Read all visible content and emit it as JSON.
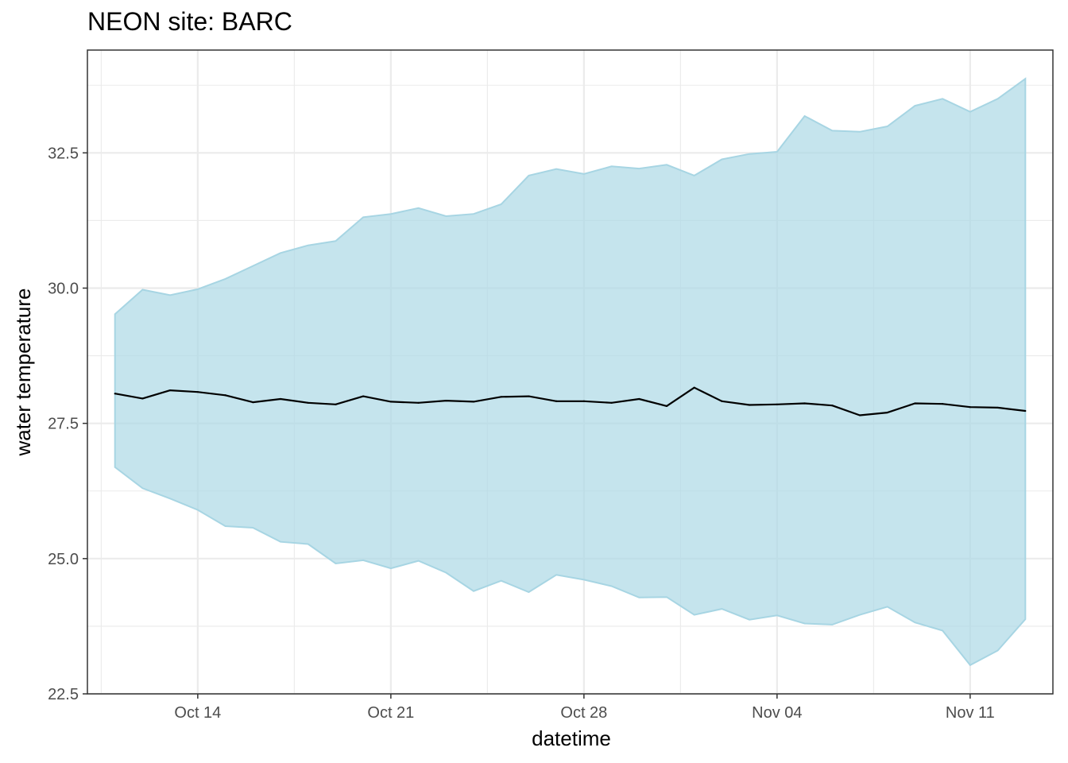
{
  "chart_data": {
    "type": "area",
    "title": "NEON site: BARC",
    "xlabel": "datetime",
    "ylabel": "water temperature",
    "ylim": [
      22.5,
      34.4
    ],
    "xlim": [
      "2023-10-10",
      "2023-11-14"
    ],
    "y_ticks": [
      22.5,
      25.0,
      27.5,
      30.0,
      32.5
    ],
    "y_tick_labels": [
      "22.5",
      "25.0",
      "27.5",
      "30.0",
      "32.5"
    ],
    "x_ticks": [
      "2023-10-14",
      "2023-10-21",
      "2023-10-28",
      "2023-11-04",
      "2023-11-11"
    ],
    "x_tick_labels": [
      "Oct 14",
      "Oct 21",
      "Oct 28",
      "Nov 04",
      "Nov 11"
    ],
    "grid": true,
    "colors": {
      "ribbon_fill": "#add8e6",
      "ribbon_edge": "#a7d5e3",
      "line": "#000000"
    },
    "x": [
      "2023-10-11",
      "2023-10-12",
      "2023-10-13",
      "2023-10-14",
      "2023-10-15",
      "2023-10-16",
      "2023-10-17",
      "2023-10-18",
      "2023-10-19",
      "2023-10-20",
      "2023-10-21",
      "2023-10-22",
      "2023-10-23",
      "2023-10-24",
      "2023-10-25",
      "2023-10-26",
      "2023-10-27",
      "2023-10-28",
      "2023-10-29",
      "2023-10-30",
      "2023-10-31",
      "2023-11-01",
      "2023-11-02",
      "2023-11-03",
      "2023-11-04",
      "2023-11-05",
      "2023-11-06",
      "2023-11-07",
      "2023-11-08",
      "2023-11-09",
      "2023-11-10",
      "2023-11-11",
      "2023-11-12",
      "2023-11-13"
    ],
    "series": [
      {
        "role": "ribbon_upper",
        "values": [
          29.52,
          29.97,
          29.87,
          29.98,
          30.17,
          30.41,
          30.65,
          30.79,
          30.87,
          31.31,
          31.37,
          31.48,
          31.33,
          31.37,
          31.55,
          32.08,
          32.2,
          32.11,
          32.25,
          32.21,
          32.28,
          32.08,
          32.38,
          32.48,
          32.52,
          33.18,
          32.91,
          32.89,
          32.99,
          33.37,
          33.5,
          33.26,
          33.5,
          33.87
        ]
      },
      {
        "role": "ribbon_lower",
        "values": [
          26.69,
          26.3,
          26.11,
          25.9,
          25.6,
          25.57,
          25.31,
          25.27,
          24.91,
          24.97,
          24.82,
          24.96,
          24.74,
          24.4,
          24.59,
          24.38,
          24.7,
          24.61,
          24.49,
          24.28,
          24.29,
          23.96,
          24.07,
          23.87,
          23.95,
          23.8,
          23.78,
          23.96,
          24.11,
          23.82,
          23.67,
          23.03,
          23.3,
          23.88
        ]
      },
      {
        "role": "mean",
        "values": [
          28.05,
          27.96,
          28.11,
          28.08,
          28.02,
          27.89,
          27.95,
          27.88,
          27.85,
          28.0,
          27.9,
          27.88,
          27.92,
          27.9,
          27.99,
          28.0,
          27.91,
          27.91,
          27.88,
          27.95,
          27.82,
          28.16,
          27.91,
          27.84,
          27.85,
          27.87,
          27.83,
          27.65,
          27.7,
          27.87,
          27.86,
          27.8,
          27.79,
          27.73
        ]
      }
    ]
  }
}
